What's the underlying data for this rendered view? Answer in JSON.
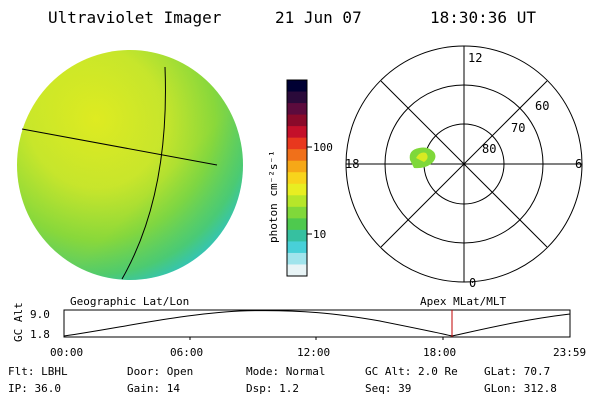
{
  "header": {
    "title": "Ultraviolet Imager",
    "date": "21 Jun 07",
    "time": "18:30:36 UT"
  },
  "colorbar": {
    "unit_label": "photon cm⁻²s⁻¹",
    "tick_100": "100",
    "tick_10": "10",
    "colors": [
      "#000033",
      "#2a0a3a",
      "#5c0b3d",
      "#8a0a2a",
      "#c4102a",
      "#e8381e",
      "#f0701a",
      "#f6a817",
      "#f8d41c",
      "#e8ee22",
      "#b6e62a",
      "#80d83a",
      "#4ec94e",
      "#36c0a0",
      "#48d0d8",
      "#a0e4ec",
      "#e8f4f6"
    ]
  },
  "polar": {
    "label_12": "12",
    "label_18": "18",
    "label_6": "6",
    "label_0": "0",
    "lat_60": "60",
    "lat_70": "70",
    "lat_80": "80"
  },
  "timeline": {
    "y_label": "GC Alt",
    "y_top": "9.0",
    "y_bottom": "1.8",
    "left_title": "Geographic Lat/Lon",
    "right_title": "Apex MLat/MLT",
    "ticks": [
      "00:00",
      "06:00",
      "12:00",
      "18:00",
      "23:59"
    ]
  },
  "info": {
    "filter": "Flt: LBHL",
    "ip": "IP: 36.0",
    "door": "Door: Open",
    "gain": "Gain: 14",
    "mode": "Mode: Normal",
    "dsp": "Dsp:    1.2",
    "gc_alt": "GC Alt: 2.0 Re",
    "seq": "Seq: 39",
    "glat": "GLat:  70.7",
    "glon": "GLon: 312.8"
  }
}
